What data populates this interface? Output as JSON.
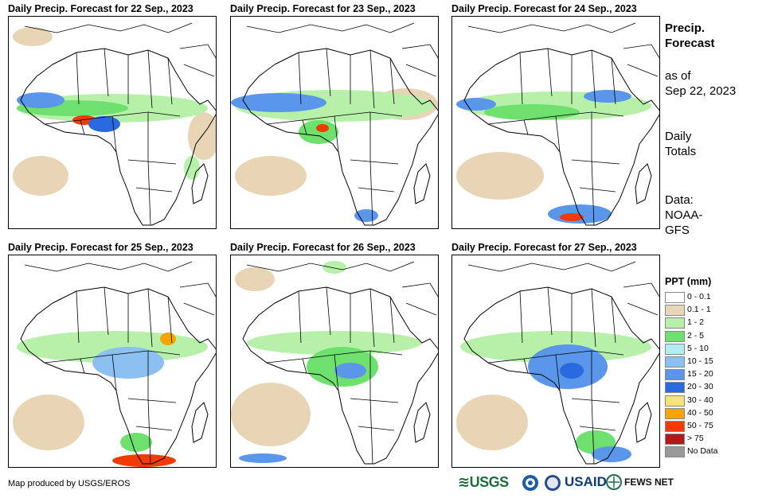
{
  "panels": [
    {
      "title": "Daily Precip. Forecast for 22 Sep., 2023"
    },
    {
      "title": "Daily Precip. Forecast for 23 Sep., 2023"
    },
    {
      "title": "Daily Precip. Forecast for 24 Sep., 2023"
    },
    {
      "title": "Daily Precip. Forecast for 25 Sep., 2023"
    },
    {
      "title": "Daily Precip. Forecast for 26 Sep., 2023"
    },
    {
      "title": "Daily Precip. Forecast for 27 Sep., 2023"
    }
  ],
  "side": {
    "heading1": "Precip.",
    "heading2": "Forecast",
    "asof1": "as of",
    "asof2": "Sep 22, 2023",
    "daily1": "Daily",
    "daily2": "Totals",
    "data1": "Data:",
    "data2": "NOAA-",
    "data3": "GFS"
  },
  "legend": {
    "title": "PPT (mm)",
    "items": [
      {
        "label": "0 - 0.1",
        "color": "#ffffff"
      },
      {
        "label": "0.1 - 1",
        "color": "#e8d5b5"
      },
      {
        "label": "1 - 2",
        "color": "#b7f0a8"
      },
      {
        "label": "2 - 5",
        "color": "#6ee06e"
      },
      {
        "label": "5 - 10",
        "color": "#b4ecf4"
      },
      {
        "label": "10 - 15",
        "color": "#8cc0f0"
      },
      {
        "label": "15 - 20",
        "color": "#5a96ea"
      },
      {
        "label": "20 - 30",
        "color": "#2a6ae0"
      },
      {
        "label": "30 - 40",
        "color": "#f8e27a"
      },
      {
        "label": "40 - 50",
        "color": "#f5a500"
      },
      {
        "label": "50 - 75",
        "color": "#f03c00"
      },
      {
        "label": "> 75",
        "color": "#b01a1a"
      },
      {
        "label": "No Data",
        "color": "#999999"
      }
    ]
  },
  "footer": "Map produced by USGS/EROS",
  "logos": {
    "usgs": "USGS",
    "usaid": "USAID",
    "fews": "FEWS NET"
  }
}
